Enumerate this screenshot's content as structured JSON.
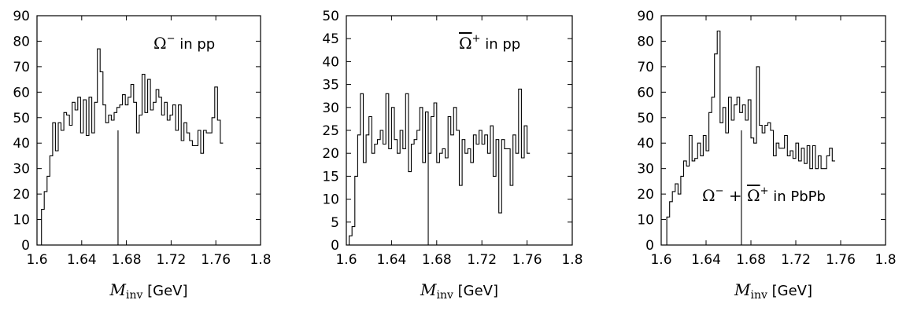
{
  "chart_data": [
    {
      "type": "line",
      "step": true,
      "annotation": {
        "symbol": "Ω",
        "superscript": "−",
        "text": " in pp"
      },
      "xlabel": {
        "symbol": "M",
        "subscript": "inv",
        "unit": " [GeV]"
      },
      "xlim": [
        1.6,
        1.8
      ],
      "ylim": [
        0,
        90
      ],
      "xticks": [
        "1.6",
        "1.64",
        "1.68",
        "1.72",
        "1.76",
        "1.8"
      ],
      "yticks": [
        "0",
        "10",
        "20",
        "30",
        "40",
        "50",
        "60",
        "70",
        "80",
        "90"
      ],
      "marker_x": 1.6725,
      "marker_top": 45,
      "x_start": 1.604,
      "bin_width": 0.0025,
      "values": [
        14,
        21,
        27,
        35,
        48,
        37,
        48,
        45,
        52,
        51,
        47,
        56,
        53,
        58,
        44,
        57,
        43,
        58,
        44,
        56,
        77,
        68,
        55,
        48,
        51,
        49,
        52,
        54,
        55,
        59,
        55,
        58,
        63,
        56,
        44,
        51,
        67,
        52,
        65,
        53,
        56,
        61,
        58,
        51,
        56,
        49,
        51,
        55,
        45,
        55,
        41,
        48,
        44,
        41,
        39,
        39,
        45,
        36,
        45,
        44,
        44,
        50,
        62,
        49,
        40
      ]
    },
    {
      "type": "line",
      "step": true,
      "annotation": {
        "symbol": "Ω",
        "overline": true,
        "superscript": "+",
        "text": " in pp"
      },
      "xlabel": {
        "symbol": "M",
        "subscript": "inv",
        "unit": " [GeV]"
      },
      "xlim": [
        1.6,
        1.8
      ],
      "ylim": [
        0,
        50
      ],
      "xticks": [
        "1.6",
        "1.64",
        "1.68",
        "1.72",
        "1.76",
        "1.8"
      ],
      "yticks": [
        "0",
        "5",
        "10",
        "15",
        "20",
        "25",
        "30",
        "35",
        "40",
        "45",
        "50"
      ],
      "marker_x": 1.6725,
      "marker_top": 20,
      "x_start": 1.6,
      "bin_width": 0.0025,
      "values": [
        0,
        2,
        4,
        15,
        24,
        33,
        18,
        24,
        28,
        20,
        22,
        23,
        25,
        22,
        33,
        21,
        30,
        23,
        20,
        25,
        21,
        33,
        16,
        22,
        23,
        25,
        30,
        18,
        29,
        20,
        28,
        31,
        18,
        20,
        21,
        19,
        28,
        24,
        30,
        25,
        13,
        23,
        20,
        21,
        18,
        24,
        22,
        25,
        22,
        24,
        20,
        26,
        15,
        23,
        7,
        23,
        21,
        21,
        13,
        24,
        20,
        34,
        19,
        26,
        20
      ]
    },
    {
      "type": "line",
      "step": true,
      "annotation": {
        "symbol": "Ω",
        "superscript": "−",
        "symbol2": "Ω",
        "overline2": true,
        "superscript2": "+",
        "text": " in PbPb"
      },
      "xlabel": {
        "symbol": "M",
        "subscript": "inv",
        "unit": " [GeV]"
      },
      "xlim": [
        1.6,
        1.8
      ],
      "ylim": [
        0,
        90
      ],
      "xticks": [
        "1.6",
        "1.64",
        "1.68",
        "1.72",
        "1.76",
        "1.8"
      ],
      "yticks": [
        "0",
        "10",
        "20",
        "30",
        "40",
        "50",
        "60",
        "70",
        "80",
        "90"
      ],
      "marker_x": 1.6715,
      "marker_top": 45,
      "x_start": 1.605,
      "bin_width": 0.0025,
      "values": [
        11,
        17,
        21,
        24,
        20,
        27,
        33,
        31,
        43,
        33,
        34,
        40,
        35,
        43,
        37,
        52,
        58,
        75,
        84,
        48,
        54,
        44,
        58,
        49,
        55,
        58,
        52,
        55,
        49,
        57,
        42,
        40,
        70,
        47,
        44,
        47,
        48,
        45,
        35,
        40,
        38,
        38,
        43,
        35,
        37,
        34,
        40,
        33,
        38,
        32,
        39,
        30,
        39,
        30,
        35,
        30,
        30,
        35,
        38,
        33
      ]
    }
  ]
}
